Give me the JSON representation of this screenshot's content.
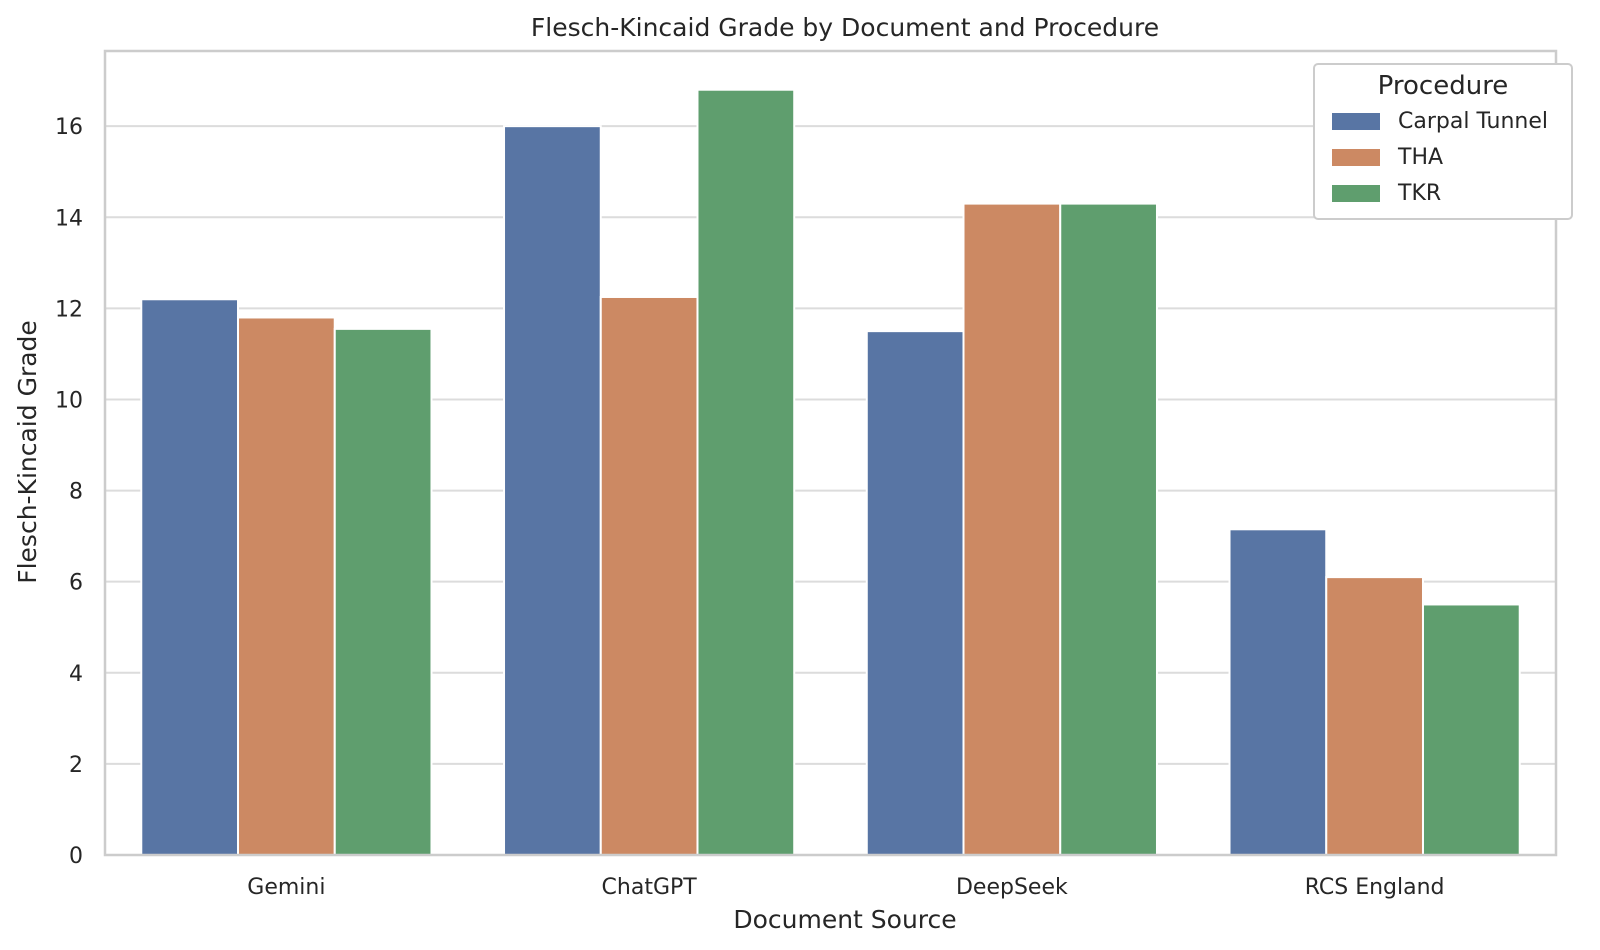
{
  "chart_data": {
    "type": "bar",
    "title": "Flesch-Kincaid Grade by Document and Procedure",
    "xlabel": "Document Source",
    "ylabel": "Flesch-Kincaid Grade",
    "categories": [
      "Gemini",
      "ChatGPT",
      "DeepSeek",
      "RCS England"
    ],
    "series": [
      {
        "name": "Carpal Tunnel",
        "color": "#5875a4",
        "values": [
          12.2,
          16.0,
          11.5,
          7.15
        ]
      },
      {
        "name": "THA",
        "color": "#cc8963",
        "values": [
          11.8,
          12.25,
          14.3,
          6.1
        ]
      },
      {
        "name": "TKR",
        "color": "#5f9e6e",
        "values": [
          11.55,
          16.8,
          14.3,
          5.5
        ]
      }
    ],
    "ylim": [
      0,
      17.65
    ],
    "yticks": [
      0,
      2,
      4,
      6,
      8,
      10,
      12,
      14,
      16
    ],
    "grid": true,
    "legend": {
      "title": "Procedure",
      "position": "top-right"
    }
  }
}
